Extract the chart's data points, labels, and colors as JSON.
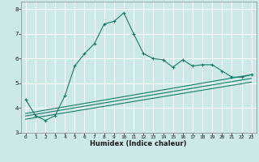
{
  "title": "",
  "xlabel": "Humidex (Indice chaleur)",
  "ylabel": "",
  "bg_color": "#cde8e8",
  "line_color": "#1a7a6a",
  "grid_color": "#ffffff",
  "grid_minor_color": "#e8f4f4",
  "xlim": [
    -0.5,
    23.5
  ],
  "ylim": [
    3.0,
    8.3
  ],
  "yticks": [
    3,
    4,
    5,
    6,
    7,
    8
  ],
  "xticks": [
    0,
    1,
    2,
    3,
    4,
    5,
    6,
    7,
    8,
    9,
    10,
    11,
    12,
    13,
    14,
    15,
    16,
    17,
    18,
    19,
    20,
    21,
    22,
    23
  ],
  "main_line_x": [
    0,
    1,
    2,
    3,
    4,
    5,
    6,
    7,
    8,
    9,
    10,
    11,
    12,
    13,
    14,
    15,
    16,
    17,
    18,
    19,
    20,
    21,
    22,
    23
  ],
  "main_line_y": [
    4.35,
    3.7,
    3.5,
    3.7,
    4.5,
    5.7,
    6.2,
    6.6,
    7.4,
    7.5,
    7.85,
    7.0,
    6.2,
    6.0,
    5.95,
    5.65,
    5.95,
    5.7,
    5.75,
    5.75,
    5.5,
    5.25,
    5.25,
    5.35
  ],
  "lower_line1_x": [
    0,
    23
  ],
  "lower_line1_y": [
    3.55,
    5.05
  ],
  "lower_line2_x": [
    0,
    23
  ],
  "lower_line2_y": [
    3.68,
    5.2
  ],
  "lower_line3_x": [
    0,
    23
  ],
  "lower_line3_y": [
    3.78,
    5.35
  ],
  "xlabel_fontsize": 6.0,
  "tick_fontsize": 4.5
}
